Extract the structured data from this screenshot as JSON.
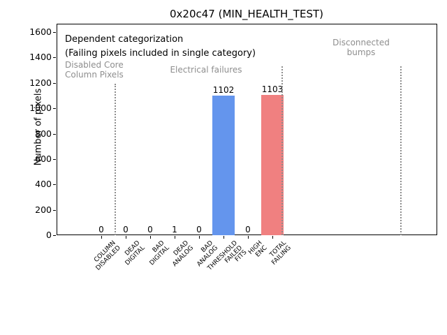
{
  "chart_data": {
    "type": "bar",
    "title": "0x20c47 (MIN_HEALTH_TEST)",
    "xlabel": "",
    "ylabel": "Number of pixels",
    "ylim": [
      0,
      1666
    ],
    "yticks": [
      0,
      200,
      400,
      600,
      800,
      1000,
      1200,
      1400,
      1600
    ],
    "grid": false,
    "legend": null,
    "categories": [
      "COLUMN\nDISABLED",
      "DEAD\nDIGITAL",
      "BAD\nDIGITAL",
      "DEAD\nANALOG",
      "BAD\nANALOG",
      "THRESHOLD\nFAILED\nFITS",
      "HIGH\nENC",
      "TOTAL\nFAILING"
    ],
    "values": [
      0,
      0,
      0,
      1,
      0,
      1102,
      0,
      1103
    ],
    "bar_value_labels": [
      "0",
      "0",
      "0",
      "1",
      "0",
      "1102",
      "0",
      "1103"
    ],
    "bar_colors": [
      null,
      null,
      null,
      null,
      null,
      "#6495ed",
      null,
      "#f08080"
    ],
    "annotations": {
      "heading_lines": [
        "Dependent categorization",
        "(Failing pixels included in single category)"
      ],
      "sections": [
        {
          "label": "Disabled Core\nColumn Pixels"
        },
        {
          "label": "Electrical failures"
        },
        {
          "label": "Disconnected\nbumps"
        }
      ],
      "divider_style": "dotted"
    },
    "colors": {
      "bar_blue": "#6495ed",
      "bar_red": "#f08080",
      "muted_text": "#8e8e8e",
      "divider": "#8e8e8e",
      "axis": "#000000"
    }
  }
}
